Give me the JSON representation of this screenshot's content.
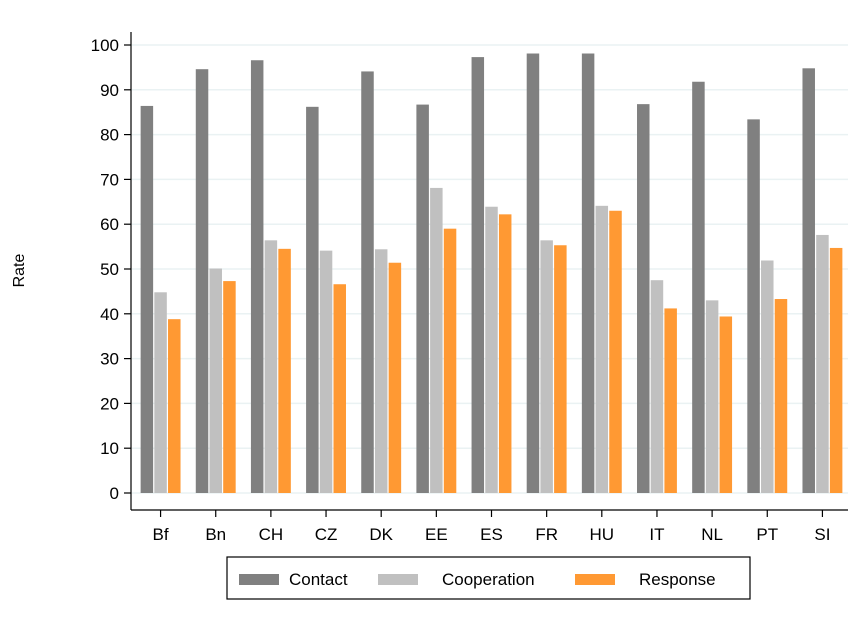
{
  "chart_data": {
    "type": "bar",
    "title": "",
    "xlabel": "",
    "ylabel": "Rate",
    "ylim": [
      0,
      100
    ],
    "yticks": [
      0,
      10,
      20,
      30,
      40,
      50,
      60,
      70,
      80,
      90,
      100
    ],
    "grid": true,
    "legend_position": "bottom",
    "categories": [
      "Bf",
      "Bn",
      "CH",
      "CZ",
      "DK",
      "EE",
      "ES",
      "FR",
      "HU",
      "IT",
      "NL",
      "PT",
      "SI"
    ],
    "series": [
      {
        "name": "Contact",
        "color": "#808080",
        "values": [
          86.4,
          94.6,
          96.6,
          86.2,
          94.1,
          86.7,
          97.3,
          98.1,
          98.1,
          86.8,
          91.8,
          83.4,
          94.8
        ]
      },
      {
        "name": "Cooperation",
        "color": "#c0c0c0",
        "values": [
          44.8,
          50.1,
          56.4,
          54.1,
          54.4,
          68.1,
          63.9,
          56.4,
          64.1,
          47.5,
          43.0,
          51.9,
          57.6
        ]
      },
      {
        "name": "Response",
        "color": "#ff9933",
        "values": [
          38.8,
          47.3,
          54.5,
          46.6,
          51.4,
          59.0,
          62.2,
          55.3,
          63.0,
          41.2,
          39.4,
          43.3,
          54.7
        ]
      }
    ]
  }
}
